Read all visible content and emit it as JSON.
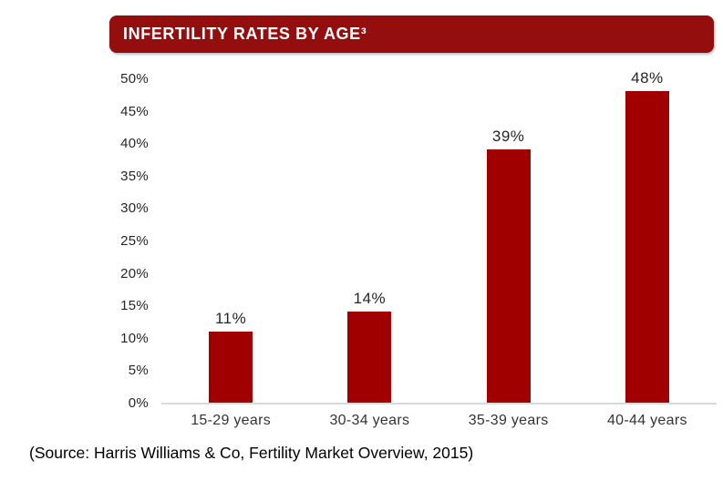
{
  "title": "INFERTILITY RATES BY AGE³",
  "source": "(Source: Harris Williams & Co, Fertility Market Overview, 2015)",
  "colors": {
    "header_bg": "#940E0E",
    "bar": "#A00000",
    "axis_line": "#D9D9D9",
    "tick_text": "#262626",
    "category_text": "#333333"
  },
  "chart_data": {
    "type": "bar",
    "title": "INFERTILITY RATES BY AGE³",
    "categories": [
      "15-29 years",
      "30-34 years",
      "35-39 years",
      "40-44 years"
    ],
    "values": [
      11,
      14,
      39,
      48
    ],
    "value_labels": [
      "11%",
      "14%",
      "39%",
      "48%"
    ],
    "xlabel": "",
    "ylabel": "",
    "ylim": [
      0,
      50
    ],
    "ytick_step": 5,
    "ytick_suffix": "%",
    "ytick_labels": [
      "0%",
      "5%",
      "10%",
      "15%",
      "20%",
      "25%",
      "30%",
      "35%",
      "40%",
      "45%",
      "50%"
    ],
    "grid": false,
    "legend_position": "none",
    "annotation": "(Source: Harris Williams & Co, Fertility Market Overview, 2015)"
  }
}
